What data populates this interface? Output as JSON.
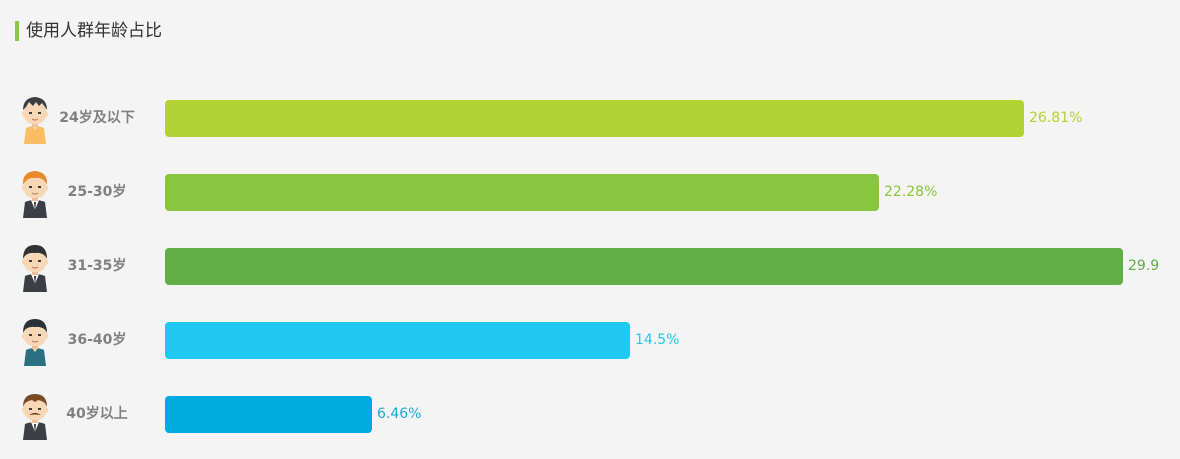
{
  "header": {
    "title": "使用人群年龄占比",
    "accent_color": "#8dc63f"
  },
  "chart_data": {
    "type": "bar",
    "orientation": "horizontal",
    "title": "使用人群年龄占比",
    "categories": [
      "24岁及以下",
      "25-30岁",
      "31-35岁",
      "36-40岁",
      "40岁以上"
    ],
    "values": [
      26.81,
      22.28,
      29.9,
      14.5,
      6.46
    ],
    "value_labels": [
      "26.81%",
      "22.28%",
      "29.9",
      "14.5%",
      "6.46%"
    ],
    "bar_colors": [
      "#b3d334",
      "#8bc540",
      "#62af47",
      "#21c8f2",
      "#00acdf"
    ],
    "label_colors": [
      "#b3d334",
      "#8bc540",
      "#62af47",
      "#21c8f2",
      "#1aaad8"
    ],
    "avatar_icons": [
      "young-person-icon",
      "orange-hair-person-icon",
      "suited-man-icon",
      "casual-man-icon",
      "mustache-man-icon"
    ],
    "xlim": [
      0,
      29.9
    ],
    "grid": false,
    "legend": "none",
    "xlabel": "",
    "ylabel": ""
  }
}
